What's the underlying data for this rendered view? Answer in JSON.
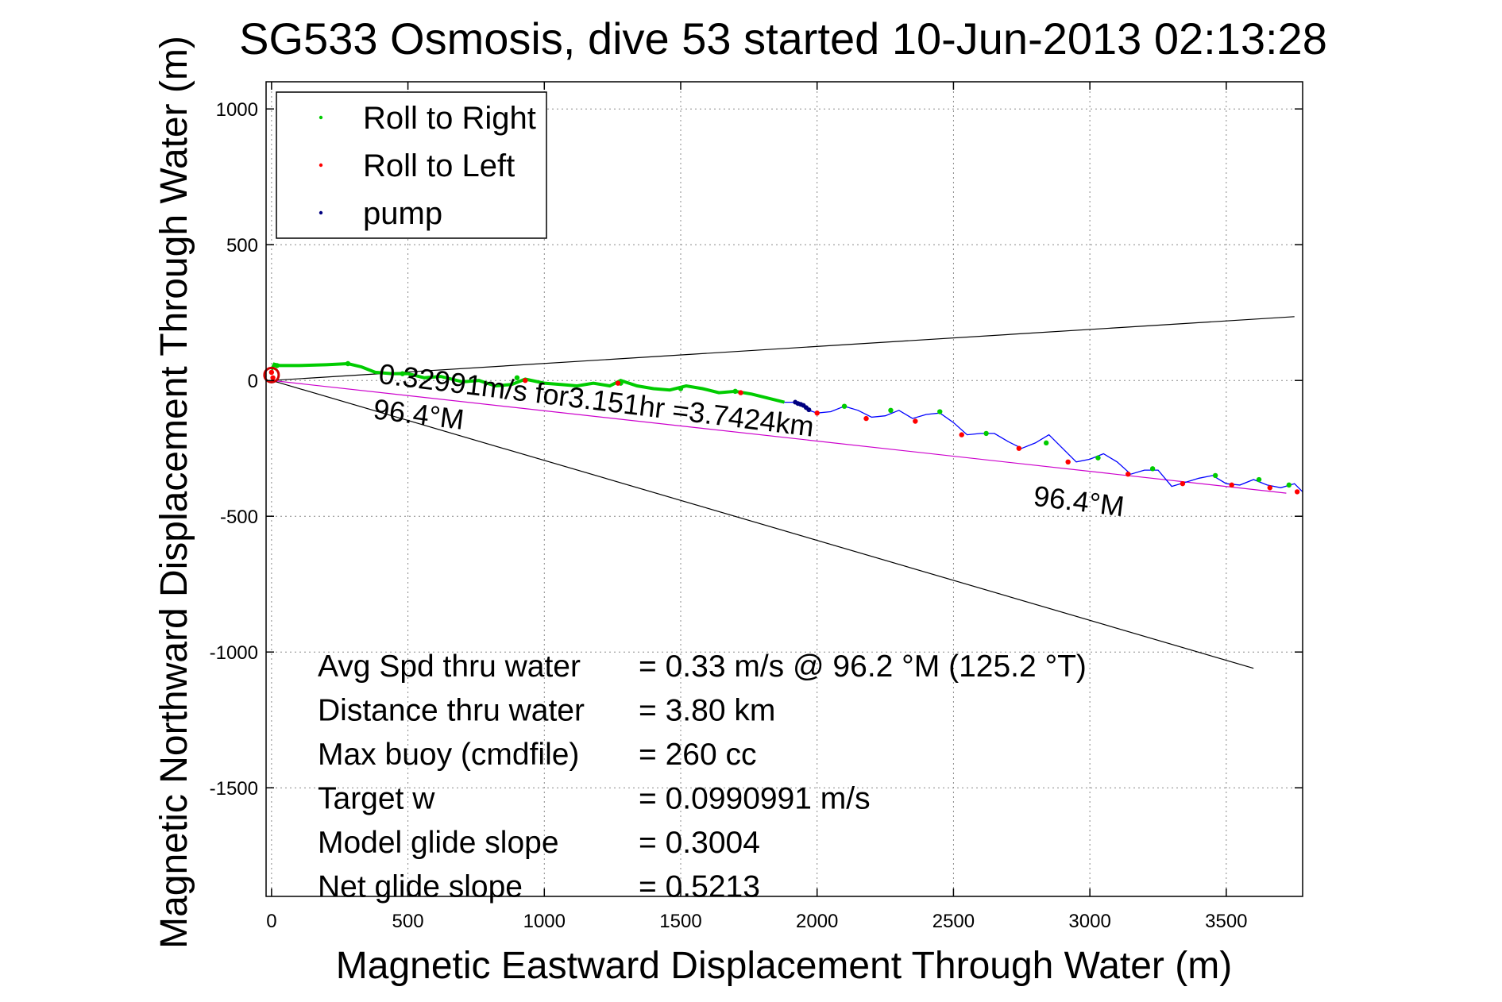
{
  "chart_data": {
    "type": "line",
    "title": "SG533 Osmosis, dive 53 started 10-Jun-2013 02:13:28",
    "xlabel": "Magnetic Eastward Displacement Through Water (m)",
    "ylabel": "Magnetic Northward Displacement Through Water (m)",
    "xlim": [
      -20,
      3780
    ],
    "ylim": [
      -1900,
      1100
    ],
    "xticks": [
      0,
      500,
      1000,
      1500,
      2000,
      2500,
      3000,
      3500
    ],
    "yticks": [
      1000,
      500,
      0,
      -500,
      -1000,
      -1500
    ],
    "xtick_labels": [
      "0",
      "500",
      "1000",
      "1500",
      "2000",
      "2500",
      "3000",
      "3500"
    ],
    "ytick_labels": [
      "1000",
      "500",
      "0",
      "-500",
      "-1000",
      "-1500"
    ],
    "grid": true,
    "legend_position": "top-left",
    "legend": [
      {
        "label": "Roll to Right",
        "color": "#00cc00"
      },
      {
        "label": "Roll to Left",
        "color": "#ff0000"
      },
      {
        "label": "pump",
        "color": "#000080"
      }
    ],
    "track": {
      "color": "#0000ff",
      "x": [
        0,
        10,
        30,
        100,
        200,
        280,
        330,
        380,
        440,
        500,
        560,
        620,
        700,
        760,
        820,
        880,
        930,
        1000,
        1060,
        1120,
        1180,
        1240,
        1280,
        1340,
        1400,
        1460,
        1520,
        1580,
        1640,
        1700,
        1760,
        1820,
        1880,
        1920,
        1950,
        1970,
        2000,
        2050,
        2100,
        2150,
        2200,
        2250,
        2300,
        2350,
        2400,
        2450,
        2500,
        2550,
        2600,
        2650,
        2700,
        2750,
        2800,
        2850,
        2900,
        2950,
        3000,
        3050,
        3100,
        3150,
        3200,
        3250,
        3300,
        3350,
        3400,
        3450,
        3500,
        3550,
        3600,
        3650,
        3700,
        3750,
        3780
      ],
      "y": [
        40,
        60,
        55,
        55,
        58,
        62,
        50,
        30,
        25,
        25,
        10,
        15,
        -5,
        0,
        -20,
        -15,
        5,
        -10,
        -15,
        -20,
        -10,
        -20,
        0,
        -20,
        -30,
        -35,
        -20,
        -30,
        -45,
        -40,
        -50,
        -65,
        -80,
        -80,
        -90,
        -110,
        -120,
        -115,
        -95,
        -110,
        -135,
        -130,
        -110,
        -140,
        -125,
        -120,
        -155,
        -200,
        -195,
        -195,
        -225,
        -250,
        -230,
        -200,
        -250,
        -300,
        -290,
        -270,
        -300,
        -345,
        -330,
        -330,
        -390,
        -375,
        -360,
        -350,
        -380,
        -385,
        -365,
        -385,
        -395,
        -380,
        -410
      ]
    },
    "roll_right_points": {
      "x": [
        20,
        280,
        480,
        900,
        1280,
        1500,
        1700,
        2100,
        2270,
        2450,
        2620,
        2840,
        3030,
        3230,
        3460,
        3620,
        3730
      ],
      "y": [
        55,
        62,
        25,
        10,
        -10,
        -30,
        -40,
        -95,
        -110,
        -115,
        -195,
        -230,
        -285,
        -325,
        -350,
        -365,
        -385
      ]
    },
    "roll_left_points": {
      "x": [
        0,
        5,
        930,
        1270,
        1720,
        2000,
        2180,
        2360,
        2530,
        2740,
        2920,
        3140,
        3340,
        3520,
        3660,
        3760
      ],
      "y": [
        30,
        10,
        0,
        -10,
        -45,
        -120,
        -140,
        -150,
        -200,
        -250,
        -300,
        -345,
        -380,
        -385,
        -395,
        -410
      ]
    },
    "pump_points": {
      "x": [
        1920,
        1930,
        1940,
        1950,
        1960,
        1970
      ],
      "y": [
        -80,
        -85,
        -88,
        -92,
        -100,
        -108
      ]
    },
    "reference_lines": [
      {
        "color": "#000000",
        "x": [
          0,
          3750
        ],
        "y": [
          0,
          235
        ]
      },
      {
        "color": "#000000",
        "x": [
          0,
          3600
        ],
        "y": [
          0,
          -1060
        ]
      },
      {
        "color": "#cc00cc",
        "x": [
          0,
          3720
        ],
        "y": [
          0,
          -415
        ]
      }
    ],
    "start_marker": {
      "color": "#cc0000",
      "x": 0,
      "y": 20
    },
    "annotations": [
      {
        "text": "0.32991m/s for3.151hr =3.7424km",
        "x": 390,
        "y": -10,
        "angle": 7
      },
      {
        "text": "96.4°M",
        "x": 370,
        "y": -140,
        "angle": 7
      },
      {
        "text": "96.4°M",
        "x": 2790,
        "y": -460,
        "angle": 7
      }
    ],
    "stats": [
      {
        "label": "Avg Spd thru water",
        "value": "=  0.33 m/s @  96.2 °M (125.2 °T)"
      },
      {
        "label": "Distance thru water",
        "value": "=  3.80 km"
      },
      {
        "label": "Max buoy (cmdfile)",
        "value": "= 260 cc"
      },
      {
        "label": "Target w",
        "value": "= 0.0990991 m/s"
      },
      {
        "label": "Model glide slope",
        "value": "= 0.3004"
      },
      {
        "label": "Net glide slope",
        "value": "= 0.5213"
      }
    ]
  }
}
